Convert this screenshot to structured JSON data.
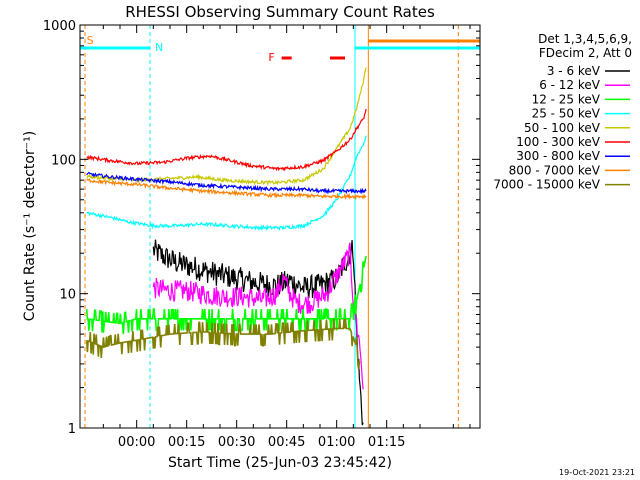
{
  "chart_data": {
    "type": "line",
    "title": "RHESSI Observing Summary Count Rates",
    "xlabel": "Start Time (25-Jun-03 23:45:42)",
    "ylabel": "Count Rate (s⁻¹ detector⁻¹)",
    "yscale": "log",
    "ylim": [
      1,
      1000
    ],
    "xlim_minutes": [
      -17,
      103
    ],
    "y_ticks": [
      "1",
      "10",
      "100",
      "1000"
    ],
    "x_ticks": [
      {
        "label": "00:00",
        "minutes": 0
      },
      {
        "label": "00:15",
        "minutes": 15
      },
      {
        "label": "00:30",
        "minutes": 30
      },
      {
        "label": "00:45",
        "minutes": 45
      },
      {
        "label": "01:00",
        "minutes": 60
      },
      {
        "label": "01:15",
        "minutes": 75
      }
    ],
    "legend_header": [
      "Det 1,3,4,5,6,9,",
      "FDecim 2, Att 0"
    ],
    "legend_position": "right",
    "series": [
      {
        "name": "3 - 6 keV",
        "color": "#000000",
        "start": 5,
        "points": [
          [
            5,
            21
          ],
          [
            8,
            19
          ],
          [
            12,
            17
          ],
          [
            18,
            15.5
          ],
          [
            24,
            14
          ],
          [
            30,
            13
          ],
          [
            36,
            12
          ],
          [
            42,
            11.5
          ],
          [
            46,
            12.5
          ],
          [
            50,
            11
          ],
          [
            55,
            11.5
          ],
          [
            60,
            13
          ],
          [
            63,
            18
          ],
          [
            65,
            22
          ],
          [
            66,
            5
          ],
          [
            67,
            2
          ],
          [
            68,
            1
          ]
        ]
      },
      {
        "name": "6 - 12 keV",
        "color": "#ff00ff",
        "start": 5,
        "points": [
          [
            5,
            11
          ],
          [
            10,
            10.5
          ],
          [
            15,
            10.5
          ],
          [
            20,
            10
          ],
          [
            26,
            9.5
          ],
          [
            32,
            9.5
          ],
          [
            38,
            9
          ],
          [
            42,
            10
          ],
          [
            44,
            13
          ],
          [
            46,
            10
          ],
          [
            48,
            8.5
          ],
          [
            52,
            8.5
          ],
          [
            57,
            10
          ],
          [
            61,
            15
          ],
          [
            64,
            20
          ],
          [
            65,
            9
          ],
          [
            67,
            4
          ],
          [
            68,
            2
          ]
        ]
      },
      {
        "name": "12 - 25 keV",
        "color": "#00ff00",
        "start": -15,
        "points": [
          [
            -15,
            6.5
          ],
          [
            -5,
            6
          ],
          [
            0,
            6.5
          ],
          [
            10,
            6.5
          ],
          [
            20,
            6.5
          ],
          [
            30,
            6.5
          ],
          [
            40,
            6.5
          ],
          [
            50,
            6.5
          ],
          [
            60,
            6.5
          ],
          [
            64,
            6.5
          ],
          [
            66,
            9
          ],
          [
            68,
            15
          ],
          [
            69,
            20
          ]
        ]
      },
      {
        "name": "25 - 50 keV",
        "color": "#00ffff",
        "start": -15,
        "points": [
          [
            -15,
            40
          ],
          [
            -8,
            37
          ],
          [
            -2,
            34
          ],
          [
            5,
            32
          ],
          [
            12,
            32
          ],
          [
            20,
            33
          ],
          [
            28,
            32
          ],
          [
            36,
            31
          ],
          [
            44,
            31
          ],
          [
            50,
            32
          ],
          [
            56,
            38
          ],
          [
            60,
            50
          ],
          [
            64,
            75
          ],
          [
            66,
            105
          ],
          [
            68,
            130
          ],
          [
            69,
            150
          ]
        ]
      },
      {
        "name": "50 - 100 keV",
        "color": "#c8c800",
        "start": -15,
        "points": [
          [
            -15,
            75
          ],
          [
            -8,
            72
          ],
          [
            0,
            70
          ],
          [
            10,
            72
          ],
          [
            18,
            74
          ],
          [
            26,
            70
          ],
          [
            34,
            68
          ],
          [
            42,
            67
          ],
          [
            50,
            70
          ],
          [
            56,
            85
          ],
          [
            60,
            120
          ],
          [
            64,
            170
          ],
          [
            66,
            240
          ],
          [
            68,
            380
          ],
          [
            69,
            520
          ]
        ]
      },
      {
        "name": "100 - 300 keV",
        "color": "#ff0000",
        "start": -15,
        "points": [
          [
            -15,
            104
          ],
          [
            -8,
            98
          ],
          [
            0,
            93
          ],
          [
            8,
            95
          ],
          [
            15,
            102
          ],
          [
            22,
            106
          ],
          [
            28,
            98
          ],
          [
            34,
            90
          ],
          [
            42,
            85
          ],
          [
            50,
            88
          ],
          [
            56,
            98
          ],
          [
            60,
            115
          ],
          [
            64,
            140
          ],
          [
            66,
            170
          ],
          [
            68,
            200
          ],
          [
            69,
            240
          ]
        ]
      },
      {
        "name": "300 - 800 keV",
        "color": "#0000ff",
        "start": -15,
        "points": [
          [
            -15,
            78
          ],
          [
            -8,
            74
          ],
          [
            0,
            71
          ],
          [
            10,
            68
          ],
          [
            20,
            64
          ],
          [
            30,
            62
          ],
          [
            40,
            60
          ],
          [
            50,
            60
          ],
          [
            55,
            58
          ],
          [
            64,
            58
          ],
          [
            69,
            58
          ]
        ]
      },
      {
        "name": "800 - 7000 keV",
        "color": "#ff8000",
        "start": -15,
        "points": [
          [
            -15,
            70
          ],
          [
            -8,
            67
          ],
          [
            0,
            65
          ],
          [
            10,
            61
          ],
          [
            20,
            58
          ],
          [
            30,
            56
          ],
          [
            40,
            54
          ],
          [
            50,
            54
          ],
          [
            55,
            53
          ],
          [
            64,
            53
          ],
          [
            69,
            53
          ]
        ]
      },
      {
        "name": "7000 - 15000 keV",
        "color": "#808000",
        "start": -15,
        "points": [
          [
            -15,
            4.5
          ],
          [
            -10,
            4
          ],
          [
            -5,
            4.3
          ],
          [
            0,
            4.5
          ],
          [
            10,
            5
          ],
          [
            20,
            5.2
          ],
          [
            30,
            5
          ],
          [
            40,
            5
          ],
          [
            50,
            5.3
          ],
          [
            60,
            5.5
          ],
          [
            64,
            5.5
          ],
          [
            66,
            4
          ],
          [
            67,
            3
          ]
        ]
      }
    ],
    "markers": [
      {
        "label": "S",
        "color": "#ff8000"
      },
      {
        "label": "N",
        "color": "#00ffff"
      },
      {
        "label": "F",
        "color": "#ff0000"
      }
    ],
    "footer_date": "19-Oct-2021 23:21"
  }
}
